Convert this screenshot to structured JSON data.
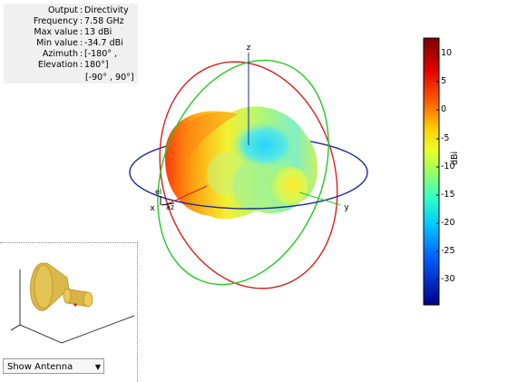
{
  "info": {
    "rows": [
      {
        "label": "Output",
        "value": "Directivity"
      },
      {
        "label": "Frequency",
        "value": "7.58 GHz"
      },
      {
        "label": "Max value",
        "value": "13 dBi"
      },
      {
        "label": "Min value",
        "value": "-34.7 dBi"
      },
      {
        "label": "Azimuth",
        "value": "[-180° ,"
      },
      {
        "label": "Elevation",
        "value": "180°]"
      }
    ],
    "elevation_range": "[-90° , 90°]"
  },
  "axes": {
    "x": "x",
    "y": "y",
    "z": "z",
    "el": "el",
    "az": "az"
  },
  "colorbar": {
    "unit": "dBi",
    "ticks": [
      "10",
      "5",
      "0",
      "-5",
      "-10",
      "-15",
      "-20",
      "-25",
      "-30"
    ],
    "range": [
      -34.7,
      13
    ]
  },
  "antenna_view": {
    "dropdown_label": "Show Antenna"
  },
  "colors": {
    "ring_red": "#d81e1e",
    "ring_green": "#22c922",
    "ring_blue": "#1d2a9a",
    "antenna": "#dcb848"
  }
}
